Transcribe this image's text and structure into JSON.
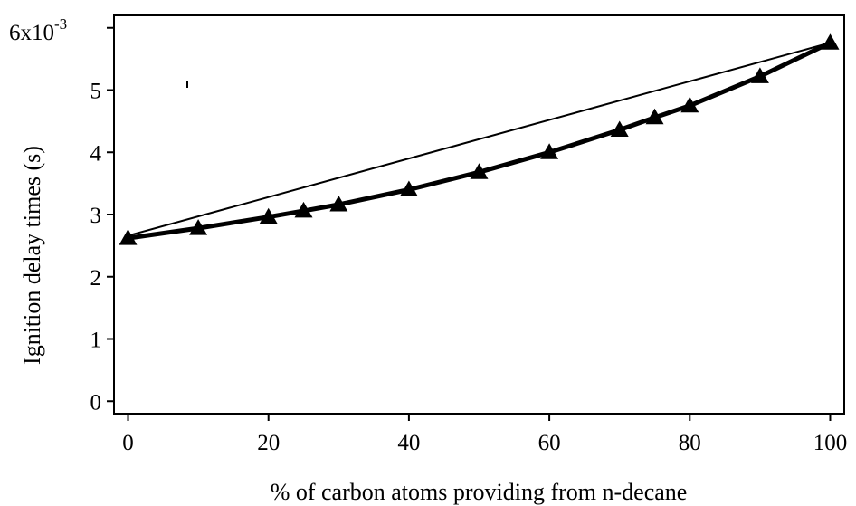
{
  "chart_data": {
    "type": "line",
    "title": "",
    "xlabel": "% of carbon atoms providing from n-decane",
    "ylabel": "Ignition delay times (s)",
    "y_multiplier_label": "x10",
    "y_multiplier_exponent": "-3",
    "xlim": [
      -2,
      102
    ],
    "ylim": [
      -0.0002,
      0.0062
    ],
    "x_ticks": [
      0,
      20,
      40,
      60,
      80,
      100
    ],
    "y_ticks": [
      0,
      0.001,
      0.002,
      0.003,
      0.004,
      0.005,
      0.006
    ],
    "x_tick_labels": [
      "0",
      "20",
      "40",
      "60",
      "80",
      "100"
    ],
    "y_tick_labels": [
      "0",
      "1",
      "2",
      "3",
      "4",
      "5",
      "6"
    ],
    "grid": false,
    "legend": "none",
    "series": [
      {
        "marker": "triangle",
        "line_style": "thick",
        "x": [
          0,
          10,
          20,
          25,
          30,
          40,
          50,
          60,
          70,
          75,
          80,
          90,
          100
        ],
        "y": [
          0.00262,
          0.00278,
          0.00296,
          0.00306,
          0.00316,
          0.0034,
          0.00368,
          0.004,
          0.00436,
          0.00456,
          0.00475,
          0.00522,
          0.00576
        ]
      },
      {
        "marker": "none",
        "line_style": "thin",
        "x": [
          0,
          100
        ],
        "y": [
          0.00266,
          0.00576
        ]
      }
    ]
  }
}
